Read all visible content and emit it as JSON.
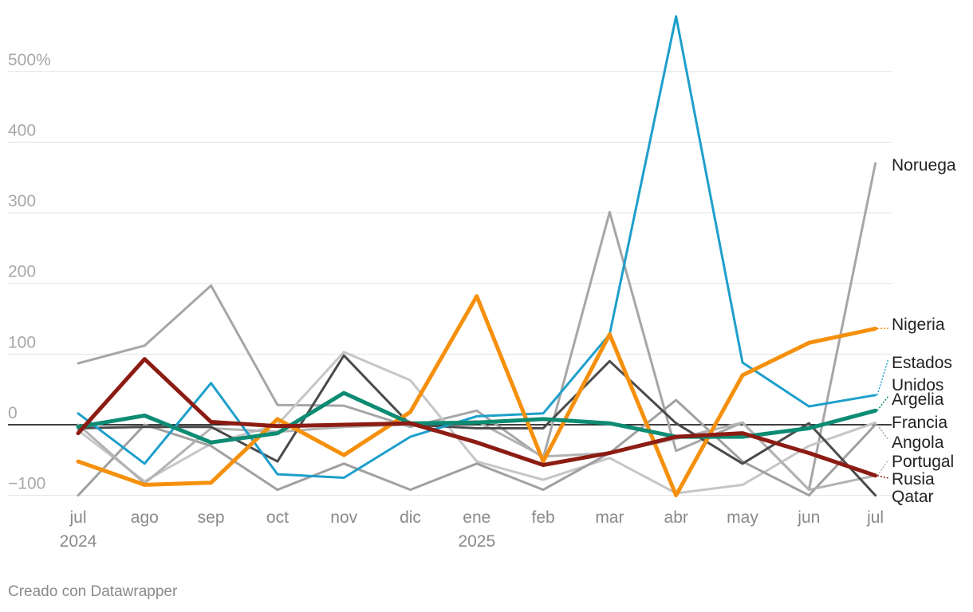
{
  "chart_data": {
    "type": "line",
    "x": [
      "jul",
      "ago",
      "sep",
      "oct",
      "nov",
      "dic",
      "ene",
      "feb",
      "mar",
      "abr",
      "may",
      "jun",
      "jul"
    ],
    "x_sublabels": [
      "2024",
      "",
      "",
      "",
      "",
      "",
      "2025",
      "",
      "",
      "",
      "",
      "",
      ""
    ],
    "y_ticks": [
      "500%",
      "400",
      "300",
      "200",
      "100",
      "0",
      "−100"
    ],
    "ylim": [
      -100,
      580
    ],
    "grid": true,
    "legend": "inline labels at line ends (right)",
    "series": [
      {
        "name": "Noruega",
        "color": "#a6a6a6",
        "width": 3,
        "values": [
          87,
          112,
          197,
          28,
          27,
          -3,
          20,
          -47,
          301,
          -37,
          3,
          -92,
          370
        ]
      },
      {
        "name": "Francia",
        "color": "#c6c6c6",
        "width": 3,
        "values": [
          -8,
          -80,
          -27,
          0,
          103,
          63,
          -52,
          -78,
          -47,
          -97,
          -85,
          -30,
          3
        ]
      },
      {
        "name": "Angola",
        "color": "#a0a0a0",
        "width": 3,
        "values": [
          -100,
          0,
          -30,
          -92,
          -55,
          -92,
          -55,
          -92,
          -40,
          35,
          -52,
          -100,
          0
        ]
      },
      {
        "name": "Portugal",
        "color": "#b2b2b2",
        "width": 3,
        "values": [
          0,
          -83,
          -5,
          -10,
          -3,
          0,
          5,
          -45,
          -40,
          -20,
          3,
          -92,
          -72
        ]
      },
      {
        "name": "Qatar",
        "color": "#4a4a4a",
        "width": 3,
        "values": [
          -5,
          -3,
          -3,
          -52,
          98,
          0,
          -5,
          -5,
          90,
          2,
          -55,
          2,
          -100
        ]
      },
      {
        "name": "Estados Unidos",
        "color": "#1d9fcb",
        "width": 3,
        "values": [
          16,
          -55,
          59,
          -70,
          -75,
          -17,
          12,
          16,
          128,
          578,
          88,
          26,
          42
        ]
      },
      {
        "name": "Nigeria",
        "color": "#f5900d",
        "width": 5,
        "values": [
          -52,
          -85,
          -82,
          8,
          -43,
          18,
          182,
          -52,
          128,
          -100,
          70,
          116,
          136
        ]
      },
      {
        "name": "Argelia",
        "color": "#0e8c73",
        "width": 5,
        "values": [
          -3,
          13,
          -25,
          -12,
          45,
          2,
          3,
          8,
          2,
          -17,
          -17,
          -5,
          20
        ]
      },
      {
        "name": "Rusia",
        "color": "#8c1c13",
        "width": 5,
        "values": [
          -12,
          93,
          4,
          -2,
          0,
          2,
          -25,
          -57,
          -40,
          -17,
          -12,
          -40,
          -72
        ]
      }
    ],
    "labels": [
      "Noruega",
      "Nigeria",
      "Estados",
      "Unidos",
      "Argelia",
      "Francia",
      "Angola",
      "Portugal",
      "Rusia",
      "Qatar"
    ]
  },
  "footer": {
    "credit": "Creado con Datawrapper"
  }
}
